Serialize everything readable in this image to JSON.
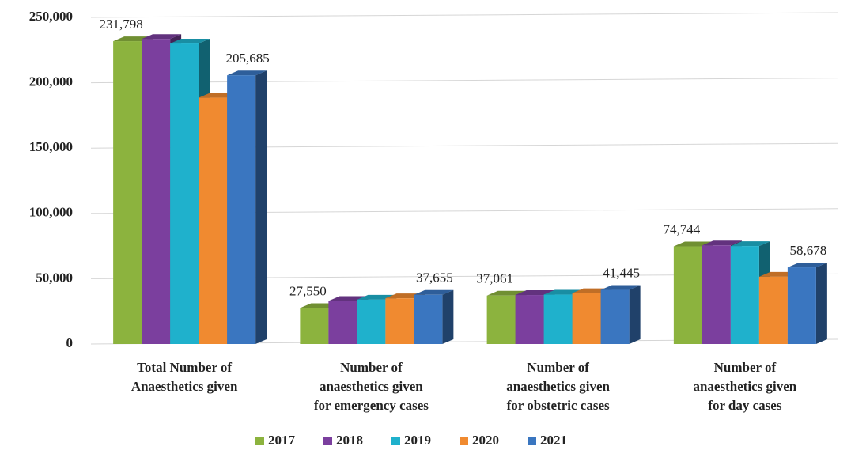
{
  "chart_data": {
    "type": "bar3d",
    "categories": [
      [
        "Total Number of",
        "Anaesthetics given"
      ],
      [
        "Number of",
        "anaesthetics given",
        "for emergency cases"
      ],
      [
        "Number of",
        "anaesthetics given",
        "for obstetric cases"
      ],
      [
        "Number of",
        "anaesthetics given",
        "for day cases"
      ]
    ],
    "series": [
      {
        "name": "2017",
        "color": "#8cb33e",
        "values": [
          231798,
          27550,
          37061,
          74744
        ],
        "value_labels": [
          "231,798",
          "27,550",
          "37,061",
          "74,744"
        ]
      },
      {
        "name": "2018",
        "color": "#7b3f9e",
        "values": [
          233500,
          33000,
          37500,
          75500
        ],
        "value_labels": [
          null,
          null,
          null,
          null
        ]
      },
      {
        "name": "2019",
        "color": "#1fb1cc",
        "values": [
          230000,
          34000,
          37800,
          75000
        ],
        "value_labels": [
          null,
          null,
          null,
          null
        ]
      },
      {
        "name": "2020",
        "color": "#f08a30",
        "values": [
          188500,
          35000,
          39000,
          51500
        ],
        "value_labels": [
          null,
          null,
          null,
          null
        ]
      },
      {
        "name": "2021",
        "color": "#3a76c0",
        "values": [
          205685,
          37655,
          41445,
          58678
        ],
        "value_labels": [
          "205,685",
          "37,655",
          "41,445",
          "58,678"
        ]
      }
    ],
    "ylim": [
      0,
      250000
    ],
    "yticks": [
      {
        "value": 0,
        "label": "0"
      },
      {
        "value": 50000,
        "label": "50,000"
      },
      {
        "value": 100000,
        "label": "100,000"
      },
      {
        "value": 150000,
        "label": "150,000"
      },
      {
        "value": 200000,
        "label": "200,000"
      },
      {
        "value": 250000,
        "label": "250,000"
      }
    ],
    "grid": true
  }
}
